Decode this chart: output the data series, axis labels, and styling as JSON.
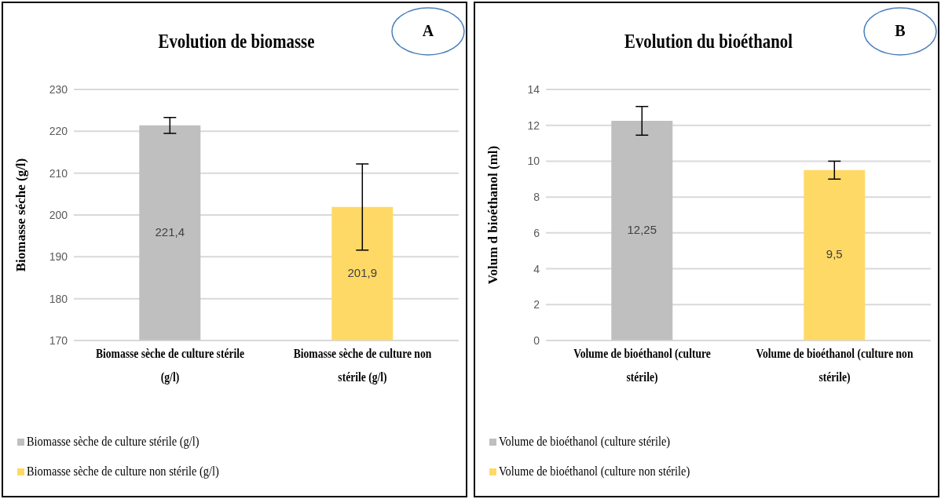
{
  "chart_data": [
    {
      "type": "bar",
      "title": "Evolution de biomasse",
      "ylabel": "Biomasse séche (g/l)",
      "annotations": [
        "A"
      ],
      "categories": [
        "Biomasse sèche de culture stérile (g/l)",
        "Biomasse sèche de culture non stérile (g/l)"
      ],
      "series": [
        {
          "name": "Biomasse sèche de culture stérile (g/l)",
          "color": "#bfbfbf",
          "values": [
            221.4,
            null
          ],
          "errors": [
            1.9,
            null
          ],
          "value_labels": [
            "221,4",
            null
          ]
        },
        {
          "name": "Biomasse sèche de culture non stérile (g/l)",
          "color": "#ffd966",
          "values": [
            null,
            201.9
          ],
          "errors": [
            null,
            10.3
          ],
          "value_labels": [
            null,
            "201,9"
          ]
        }
      ],
      "ylim": [
        170,
        230
      ],
      "yticks": [
        170,
        180,
        190,
        200,
        210,
        220,
        230
      ],
      "grid": "y",
      "legend": "bottom"
    },
    {
      "type": "bar",
      "title": "Evolution du bioéthanol",
      "ylabel": "Volum d bioéthanol (ml)",
      "annotations": [
        "B"
      ],
      "categories": [
        "Volume de bioéthanol (culture stérile)",
        "Volume de bioéthanol  (culture non stérile)"
      ],
      "series": [
        {
          "name": "Volume de bioéthanol (culture stérile)",
          "color": "#bfbfbf",
          "values": [
            12.25,
            null
          ],
          "errors": [
            0.8,
            null
          ],
          "value_labels": [
            "12,25",
            null
          ]
        },
        {
          "name": "Volume de bioéthanol  (culture non stérile)",
          "color": "#ffd966",
          "values": [
            null,
            9.5
          ],
          "errors": [
            null,
            0.5
          ],
          "value_labels": [
            null,
            "9,5"
          ]
        }
      ],
      "ylim": [
        0,
        14
      ],
      "yticks": [
        0,
        2,
        4,
        6,
        8,
        10,
        12,
        14
      ],
      "grid": "y",
      "legend": "bottom"
    }
  ]
}
